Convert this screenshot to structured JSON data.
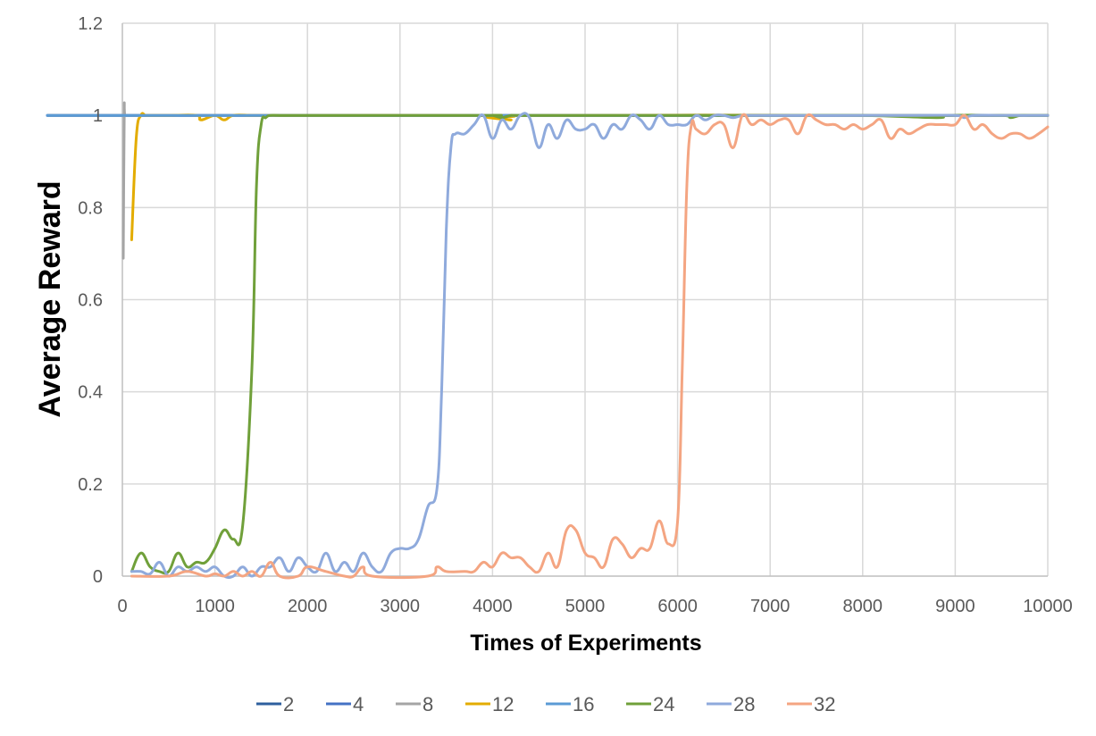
{
  "chart_data": {
    "type": "line",
    "title": "",
    "xlabel": "Times of Experiments",
    "ylabel": "Average Reward",
    "xlim": [
      0,
      10000
    ],
    "ylim": [
      0,
      1.2
    ],
    "x_ticks": [
      "0",
      "1000",
      "2000",
      "3000",
      "4000",
      "5000",
      "6000",
      "7000",
      "8000",
      "9000",
      "10000"
    ],
    "y_ticks": [
      "0",
      "0.2",
      "0.4",
      "0.6",
      "0.8",
      "1",
      "1.2"
    ],
    "grid": "vertical and horizontal",
    "legend_position": "bottom",
    "series": [
      {
        "name": "2",
        "color": "#2e5f9e",
        "x": [
          0,
          100,
          10000
        ],
        "values": [
          1,
          1,
          1
        ]
      },
      {
        "name": "4",
        "color": "#4472c4",
        "x": [
          0,
          100,
          10000
        ],
        "values": [
          1,
          1,
          1
        ]
      },
      {
        "name": "8",
        "color": "#a5a5a5",
        "x": [
          10,
          20,
          30,
          100,
          10000
        ],
        "values": [
          0.69,
          1,
          1,
          1,
          1
        ]
      },
      {
        "name": "12",
        "color": "#e3ac00",
        "x": [
          100,
          150,
          200,
          250,
          300,
          500,
          800,
          850,
          1000,
          1100,
          1200,
          1400,
          1600,
          4000,
          4100,
          4200,
          4300,
          8100,
          8200,
          8300,
          10000
        ],
        "values": [
          0.73,
          0.95,
          1,
          1,
          1,
          1,
          1,
          0.99,
          1,
          0.99,
          1,
          1,
          1,
          1,
          0.995,
          0.99,
          1,
          1,
          1,
          1,
          1
        ]
      },
      {
        "name": "16",
        "color": "#5b9bd5",
        "x": [
          0,
          100,
          10000
        ],
        "values": [
          1,
          1,
          1
        ]
      },
      {
        "name": "24",
        "color": "#70a03a",
        "x": [
          100,
          200,
          300,
          400,
          500,
          600,
          700,
          800,
          900,
          1000,
          1100,
          1200,
          1300,
          1400,
          1450,
          1500,
          1550,
          1600,
          1700,
          2000,
          3900,
          4000,
          4100,
          4200,
          4300,
          5000,
          7000,
          8000,
          8800,
          8900,
          9500,
          9600,
          9700,
          9800,
          10000
        ],
        "values": [
          0.01,
          0.05,
          0.02,
          0.01,
          0.01,
          0.05,
          0.02,
          0.03,
          0.03,
          0.06,
          0.1,
          0.08,
          0.11,
          0.45,
          0.85,
          0.98,
          0.995,
          1,
          1,
          1,
          1,
          1,
          0.995,
          1,
          1,
          1,
          1,
          1,
          0.995,
          1,
          1,
          0.995,
          1,
          1,
          1
        ]
      },
      {
        "name": "28",
        "color": "#8faadc",
        "x": [
          100,
          200,
          300,
          400,
          500,
          600,
          700,
          800,
          900,
          1000,
          1100,
          1200,
          1300,
          1400,
          1500,
          1600,
          1700,
          1800,
          1900,
          2000,
          2100,
          2200,
          2300,
          2400,
          2500,
          2600,
          2700,
          2800,
          2900,
          3000,
          3100,
          3200,
          3300,
          3400,
          3450,
          3500,
          3550,
          3600,
          3700,
          3800,
          3900,
          4000,
          4100,
          4200,
          4300,
          4400,
          4500,
          4600,
          4700,
          4800,
          4900,
          5000,
          5100,
          5200,
          5300,
          5400,
          5500,
          5600,
          5700,
          5800,
          5900,
          6000,
          6100,
          6200,
          6300,
          6400,
          6500,
          6600,
          6700,
          6800,
          6900,
          7000,
          7200,
          7500,
          8000,
          8500,
          9000,
          9100,
          9200,
          9500,
          10000
        ],
        "values": [
          0.01,
          0.01,
          0.005,
          0.03,
          0.0,
          0.02,
          0.01,
          0.02,
          0.01,
          0.02,
          0.0,
          0.0,
          0.02,
          0.0,
          0.02,
          0.02,
          0.04,
          0.01,
          0.04,
          0.02,
          0.01,
          0.05,
          0.01,
          0.03,
          0.01,
          0.05,
          0.02,
          0.01,
          0.05,
          0.06,
          0.06,
          0.08,
          0.15,
          0.19,
          0.4,
          0.75,
          0.93,
          0.96,
          0.96,
          0.98,
          1.0,
          0.95,
          0.99,
          0.97,
          1.0,
          0.995,
          0.93,
          0.98,
          0.95,
          0.99,
          0.97,
          0.97,
          0.98,
          0.95,
          0.98,
          0.97,
          1.0,
          0.99,
          0.97,
          1.0,
          0.98,
          0.98,
          0.98,
          1.0,
          0.99,
          1.0,
          1.0,
          0.995,
          1.0,
          1.0,
          1.0,
          1.0,
          1.0,
          1.0,
          1.0,
          1.0,
          1.0,
          0.995,
          1.0,
          1.0,
          1.0
        ]
      },
      {
        "name": "32",
        "color": "#f4a582",
        "x": [
          100,
          500,
          700,
          900,
          1000,
          1100,
          1200,
          1300,
          1400,
          1500,
          1600,
          1700,
          1900,
          2000,
          2200,
          2400,
          2500,
          2600,
          2700,
          3300,
          3400,
          3500,
          3700,
          3800,
          3900,
          4000,
          4100,
          4200,
          4300,
          4400,
          4500,
          4600,
          4700,
          4800,
          4900,
          5000,
          5100,
          5200,
          5300,
          5400,
          5500,
          5600,
          5700,
          5800,
          5900,
          6000,
          6050,
          6100,
          6150,
          6200,
          6300,
          6400,
          6500,
          6600,
          6700,
          6800,
          6900,
          7000,
          7100,
          7200,
          7300,
          7400,
          7500,
          7600,
          7700,
          7800,
          7900,
          8000,
          8100,
          8200,
          8300,
          8400,
          8500,
          8600,
          8700,
          8800,
          8900,
          9000,
          9100,
          9200,
          9300,
          9400,
          9500,
          9600,
          9700,
          9800,
          9900,
          10000
        ],
        "values": [
          0.0,
          0.0,
          0.01,
          0.0,
          0.005,
          0.0,
          0.01,
          0.0,
          0.01,
          0.0,
          0.03,
          0.0,
          0.0,
          0.02,
          0.01,
          0.0,
          0.0,
          0.02,
          0.0,
          0.0,
          0.02,
          0.01,
          0.01,
          0.01,
          0.03,
          0.02,
          0.05,
          0.04,
          0.04,
          0.02,
          0.01,
          0.05,
          0.02,
          0.1,
          0.1,
          0.05,
          0.04,
          0.02,
          0.08,
          0.07,
          0.04,
          0.06,
          0.06,
          0.12,
          0.07,
          0.12,
          0.45,
          0.85,
          0.98,
          0.97,
          0.96,
          0.98,
          0.98,
          0.93,
          1.0,
          0.98,
          0.99,
          0.98,
          0.99,
          0.99,
          0.96,
          1.0,
          0.99,
          0.98,
          0.98,
          0.97,
          0.98,
          0.97,
          0.98,
          0.99,
          0.95,
          0.97,
          0.96,
          0.97,
          0.98,
          0.98,
          0.98,
          0.98,
          1.0,
          0.97,
          0.98,
          0.96,
          0.95,
          0.96,
          0.96,
          0.95,
          0.96,
          0.975
        ]
      }
    ]
  }
}
